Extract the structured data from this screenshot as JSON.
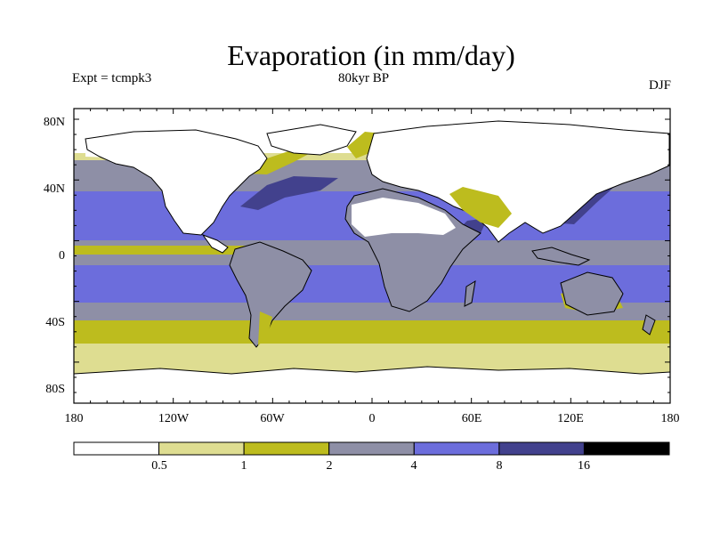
{
  "title": "Evaporation (in mm/day)",
  "experiment": "Expt = tcmpk3",
  "period": "80kyr BP",
  "season": "DJF",
  "y_ticks": [
    "80N",
    "40N",
    "0",
    "40S",
    "80S"
  ],
  "x_ticks": [
    "180",
    "120W",
    "60W",
    "0",
    "60E",
    "120E",
    "180"
  ],
  "colorbar": {
    "boundaries": [
      "0.5",
      "1",
      "2",
      "4",
      "8",
      "16"
    ],
    "colors": [
      "#ffffff",
      "#dedd91",
      "#bdbc1e",
      "#8e8fa6",
      "#6c6ddc",
      "#42418d",
      "#000000"
    ]
  }
}
